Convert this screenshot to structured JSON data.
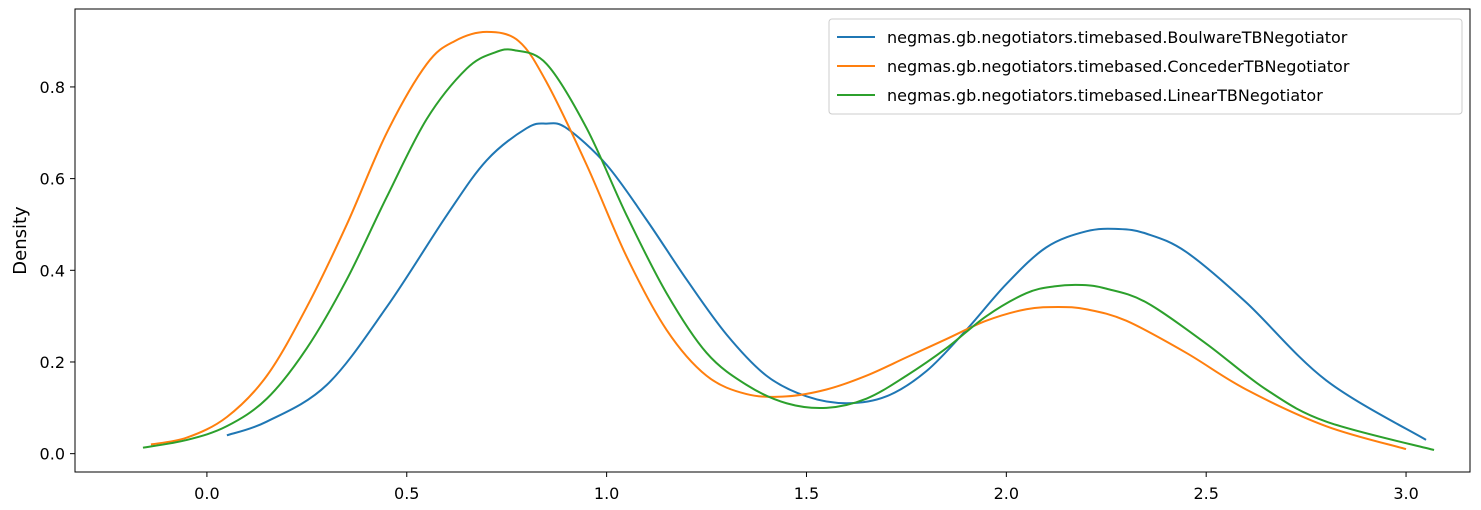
{
  "chart_data": {
    "type": "line",
    "title": "",
    "xlabel": "",
    "ylabel": "Density",
    "xlim": [
      -0.33,
      3.16
    ],
    "ylim": [
      -0.04,
      0.97
    ],
    "x_ticks": [
      0.0,
      0.5,
      1.0,
      1.5,
      2.0,
      2.5,
      3.0
    ],
    "x_tick_labels": [
      "0.0",
      "0.5",
      "1.0",
      "1.5",
      "2.0",
      "2.5",
      "3.0"
    ],
    "y_ticks": [
      0.0,
      0.2,
      0.4,
      0.6,
      0.8
    ],
    "y_tick_labels": [
      "0.0",
      "0.2",
      "0.4",
      "0.6",
      "0.8"
    ],
    "grid": false,
    "legend_position": "top-right",
    "series": [
      {
        "name": "negmas.gb.negotiators.timebased.BoulwareTBNegotiator",
        "color": "#1f77b4",
        "x": [
          0.05,
          0.15,
          0.3,
          0.45,
          0.6,
          0.7,
          0.8,
          0.85,
          0.9,
          1.0,
          1.1,
          1.2,
          1.3,
          1.4,
          1.5,
          1.6,
          1.7,
          1.8,
          1.9,
          2.0,
          2.1,
          2.2,
          2.28,
          2.35,
          2.45,
          2.6,
          2.8,
          3.05
        ],
        "y": [
          0.04,
          0.07,
          0.15,
          0.32,
          0.52,
          0.64,
          0.71,
          0.72,
          0.71,
          0.63,
          0.51,
          0.38,
          0.26,
          0.17,
          0.125,
          0.11,
          0.125,
          0.18,
          0.27,
          0.37,
          0.45,
          0.485,
          0.49,
          0.48,
          0.44,
          0.33,
          0.16,
          0.03
        ]
      },
      {
        "name": "negmas.gb.negotiators.timebased.ConcederTBNegotiator",
        "color": "#ff7f0e",
        "x": [
          -0.14,
          -0.05,
          0.05,
          0.15,
          0.25,
          0.35,
          0.45,
          0.55,
          0.62,
          0.7,
          0.78,
          0.85,
          0.95,
          1.05,
          1.15,
          1.25,
          1.35,
          1.45,
          1.55,
          1.65,
          1.75,
          1.85,
          1.95,
          2.05,
          2.13,
          2.2,
          2.3,
          2.45,
          2.6,
          2.8,
          3.0
        ],
        "y": [
          0.02,
          0.035,
          0.08,
          0.17,
          0.32,
          0.5,
          0.7,
          0.85,
          0.9,
          0.92,
          0.9,
          0.81,
          0.63,
          0.43,
          0.27,
          0.17,
          0.13,
          0.125,
          0.14,
          0.17,
          0.21,
          0.25,
          0.29,
          0.315,
          0.32,
          0.315,
          0.29,
          0.22,
          0.14,
          0.06,
          0.01
        ]
      },
      {
        "name": "negmas.gb.negotiators.timebased.LinearTBNegotiator",
        "color": "#2ca02c",
        "x": [
          -0.16,
          -0.05,
          0.05,
          0.15,
          0.25,
          0.35,
          0.45,
          0.55,
          0.65,
          0.72,
          0.77,
          0.85,
          0.95,
          1.05,
          1.15,
          1.25,
          1.35,
          1.45,
          1.55,
          1.65,
          1.75,
          1.85,
          1.95,
          2.05,
          2.12,
          2.19,
          2.25,
          2.35,
          2.5,
          2.65,
          2.8,
          3.07
        ],
        "y": [
          0.013,
          0.03,
          0.06,
          0.12,
          0.23,
          0.38,
          0.56,
          0.73,
          0.84,
          0.875,
          0.88,
          0.85,
          0.71,
          0.52,
          0.35,
          0.22,
          0.15,
          0.11,
          0.1,
          0.12,
          0.17,
          0.23,
          0.3,
          0.35,
          0.365,
          0.368,
          0.36,
          0.33,
          0.24,
          0.14,
          0.07,
          0.008
        ]
      }
    ]
  }
}
